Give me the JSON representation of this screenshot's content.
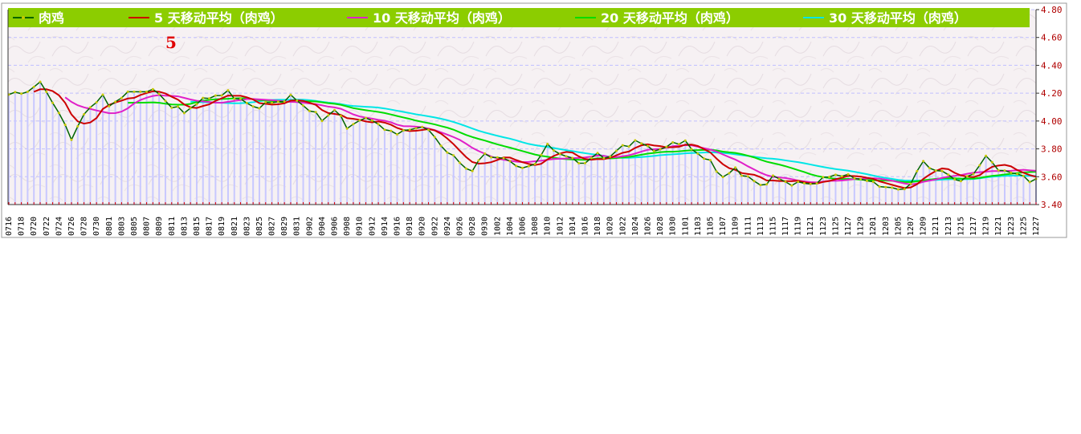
{
  "chart_data": {
    "type": "line",
    "annotation": "5",
    "ylim": [
      3.4,
      4.8
    ],
    "yticks": [
      "3.40",
      "3.60",
      "3.80",
      "4.00",
      "4.20",
      "4.40",
      "4.60",
      "4.80"
    ],
    "grid": true,
    "legend_position": "top",
    "x": [
      "0716",
      "0717",
      "0718",
      "0719",
      "0720",
      "0721",
      "0722",
      "0723",
      "0724",
      "0725",
      "0726",
      "0727",
      "0728",
      "0729",
      "0730",
      "0731",
      "0801",
      "0802",
      "0803",
      "0804",
      "0805",
      "0806",
      "0807",
      "0808",
      "0809",
      "0810",
      "0811",
      "0812",
      "0813",
      "0814",
      "0815",
      "0816",
      "0817",
      "0818",
      "0819",
      "0820",
      "0821",
      "0822",
      "0823",
      "0824",
      "0825",
      "0826",
      "0827",
      "0828",
      "0829",
      "0830",
      "0831",
      "0901",
      "0902",
      "0903",
      "0904",
      "0905",
      "0906",
      "0907",
      "0908",
      "0909",
      "0910",
      "0911",
      "0912",
      "0913",
      "0914",
      "0915",
      "0916",
      "0917",
      "0918",
      "0919",
      "0920",
      "0921",
      "0922",
      "0923",
      "0924",
      "0925",
      "0926",
      "0927",
      "0928",
      "0929",
      "0930",
      "1001",
      "1002",
      "1003",
      "1004",
      "1005",
      "1006",
      "1007",
      "1008",
      "1009",
      "1010",
      "1011",
      "1012",
      "1013",
      "1014",
      "1015",
      "1016",
      "1017",
      "1018",
      "1019",
      "1020",
      "1021",
      "1022",
      "1023",
      "1024",
      "1025",
      "1026",
      "1027",
      "1028",
      "1029",
      "1030",
      "1031",
      "1101",
      "1102",
      "1103",
      "1104",
      "1105",
      "1106",
      "1107",
      "1108",
      "1109",
      "1110",
      "1111",
      "1112",
      "1113",
      "1114",
      "1115",
      "1116",
      "1117",
      "1118",
      "1119",
      "1120",
      "1121",
      "1122",
      "1123",
      "1124",
      "1125",
      "1126",
      "1127",
      "1128",
      "1129",
      "1130",
      "1201",
      "1202",
      "1203",
      "1204",
      "1205",
      "1206",
      "1207",
      "1208",
      "1209",
      "1210",
      "1211",
      "1212",
      "1213",
      "1214",
      "1215",
      "1216",
      "1217",
      "1218",
      "1219",
      "1220",
      "1221",
      "1222",
      "1223",
      "1224",
      "1225",
      "1226",
      "1227"
    ],
    "xtick_labels": [
      "0716",
      "0718",
      "0720",
      "0722",
      "0724",
      "0726",
      "0728",
      "0730",
      "0801",
      "0803",
      "0805",
      "0807",
      "0809",
      "0811",
      "0813",
      "0815",
      "0817",
      "0819",
      "0821",
      "0823",
      "0825",
      "0827",
      "0829",
      "0831",
      "0902",
      "0904",
      "0906",
      "0908",
      "0910",
      "0912",
      "0914",
      "0916",
      "0918",
      "0920",
      "0922",
      "0924",
      "0926",
      "0928",
      "0930",
      "1002",
      "1004",
      "1006",
      "1008",
      "1010",
      "1012",
      "1014",
      "1016",
      "1018",
      "1020",
      "1022",
      "1024",
      "1026",
      "1028",
      "1030",
      "1101",
      "1103",
      "1105",
      "1107",
      "1109",
      "1111",
      "1113",
      "1115",
      "1117",
      "1119",
      "1121",
      "1123",
      "1125",
      "1127",
      "1129",
      "1201",
      "1203",
      "1205",
      "1207",
      "1209",
      "1211",
      "1213",
      "1215",
      "1217",
      "1219",
      "1221",
      "1223",
      "1225",
      "1227"
    ],
    "anchors": [
      [
        "0716",
        4.19
      ],
      [
        "0718",
        4.2
      ],
      [
        "0720",
        4.24
      ],
      [
        "0721",
        4.27
      ],
      [
        "0722",
        4.22
      ],
      [
        "0724",
        4.05
      ],
      [
        "0726",
        3.88
      ],
      [
        "0727",
        3.96
      ],
      [
        "0728",
        4.04
      ],
      [
        "0730",
        4.15
      ],
      [
        "0731",
        4.18
      ],
      [
        "0801",
        4.1
      ],
      [
        "0803",
        4.18
      ],
      [
        "0805",
        4.21
      ],
      [
        "0807",
        4.22
      ],
      [
        "0809",
        4.2
      ],
      [
        "0811",
        4.1
      ],
      [
        "0813",
        4.07
      ],
      [
        "0815",
        4.12
      ],
      [
        "0817",
        4.18
      ],
      [
        "0819",
        4.18
      ],
      [
        "0820",
        4.21
      ],
      [
        "0822",
        4.15
      ],
      [
        "0824",
        4.1
      ],
      [
        "0826",
        4.12
      ],
      [
        "0828",
        4.14
      ],
      [
        "0830",
        4.17
      ],
      [
        "0831",
        4.15
      ],
      [
        "0902",
        4.08
      ],
      [
        "0904",
        4.01
      ],
      [
        "0906",
        4.08
      ],
      [
        "0908",
        3.96
      ],
      [
        "0910",
        4.0
      ],
      [
        "0912",
        4.02
      ],
      [
        "0914",
        3.93
      ],
      [
        "0916",
        3.92
      ],
      [
        "0918",
        3.93
      ],
      [
        "0920",
        3.97
      ],
      [
        "0922",
        3.88
      ],
      [
        "0924",
        3.78
      ],
      [
        "0926",
        3.7
      ],
      [
        "0928",
        3.64
      ],
      [
        "0930",
        3.77
      ],
      [
        "1002",
        3.73
      ],
      [
        "1004",
        3.72
      ],
      [
        "1006",
        3.65
      ],
      [
        "1008",
        3.7
      ],
      [
        "1010",
        3.82
      ],
      [
        "1012",
        3.77
      ],
      [
        "1014",
        3.72
      ],
      [
        "1016",
        3.7
      ],
      [
        "1018",
        3.76
      ],
      [
        "1020",
        3.74
      ],
      [
        "1022",
        3.82
      ],
      [
        "1024",
        3.85
      ],
      [
        "1026",
        3.82
      ],
      [
        "1028",
        3.78
      ],
      [
        "1030",
        3.85
      ],
      [
        "1101",
        3.84
      ],
      [
        "1103",
        3.77
      ],
      [
        "1105",
        3.7
      ],
      [
        "1107",
        3.6
      ],
      [
        "1109",
        3.65
      ],
      [
        "1111",
        3.6
      ],
      [
        "1113",
        3.53
      ],
      [
        "1115",
        3.6
      ],
      [
        "1117",
        3.56
      ],
      [
        "1119",
        3.55
      ],
      [
        "1121",
        3.55
      ],
      [
        "1123",
        3.58
      ],
      [
        "1125",
        3.62
      ],
      [
        "1127",
        3.6
      ],
      [
        "1129",
        3.59
      ],
      [
        "1201",
        3.55
      ],
      [
        "1203",
        3.53
      ],
      [
        "1205",
        3.5
      ],
      [
        "1207",
        3.55
      ],
      [
        "1209",
        3.71
      ],
      [
        "1211",
        3.64
      ],
      [
        "1213",
        3.62
      ],
      [
        "1215",
        3.56
      ],
      [
        "1217",
        3.63
      ],
      [
        "1219",
        3.74
      ],
      [
        "1221",
        3.66
      ],
      [
        "1223",
        3.62
      ],
      [
        "1225",
        3.62
      ],
      [
        "1226",
        3.55
      ],
      [
        "1227",
        3.58
      ]
    ],
    "series": [
      {
        "name": "肉鸡",
        "color": "#006400",
        "marker": "#c8c800",
        "kind": "price"
      },
      {
        "name": "5 天移动平均（肉鸡）",
        "color": "#cc0000",
        "window": 5
      },
      {
        "name": "10 天移动平均（肉鸡）",
        "color": "#e020c8",
        "window": 10
      },
      {
        "name": "20 天移动平均（肉鸡）",
        "color": "#00dd00",
        "window": 20
      },
      {
        "name": "30 天移动平均（肉鸡）",
        "color": "#00e6e6",
        "window": 30
      }
    ],
    "colors": {
      "legend_bg": "#8ccd00",
      "bar_fill": "#c8c8ff",
      "ytick_color": "#b00000",
      "tick_mark_red": "#dd0000",
      "grid": "#c0c0ff"
    }
  }
}
